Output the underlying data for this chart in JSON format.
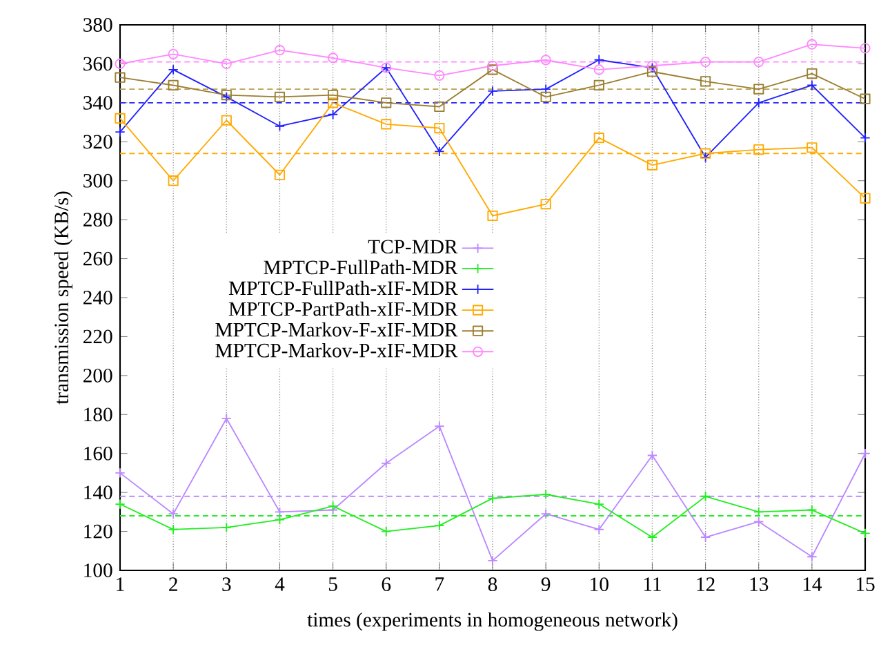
{
  "chart_data": {
    "type": "line",
    "xlabel": "times (experiments in homogeneous network)",
    "ylabel": "transmission speed (KB/s)",
    "x": [
      1,
      2,
      3,
      4,
      5,
      6,
      7,
      8,
      9,
      10,
      11,
      12,
      13,
      14,
      15
    ],
    "xlim": [
      1,
      15
    ],
    "xticks": [
      1,
      2,
      3,
      4,
      5,
      6,
      7,
      8,
      9,
      10,
      11,
      12,
      13,
      14,
      15
    ],
    "ylim": [
      100,
      380
    ],
    "yticks": [
      100,
      120,
      140,
      160,
      180,
      200,
      220,
      240,
      260,
      280,
      300,
      320,
      340,
      360,
      380
    ],
    "grid": "x",
    "legend": "left",
    "line_style": "solid",
    "series": [
      {
        "name": "TCP-MDR",
        "color": "#bb88ff",
        "marker": "cross",
        "values": [
          150,
          129,
          178,
          130,
          131,
          155,
          174,
          105,
          129,
          121,
          159,
          117,
          125,
          107,
          160
        ]
      },
      {
        "name": "MPTCP-FullPath-MDR",
        "color": "#22ee22",
        "marker": "cross",
        "values": [
          134,
          121,
          122,
          126,
          133,
          120,
          123,
          137,
          139,
          134,
          117,
          138,
          130,
          131,
          119
        ]
      },
      {
        "name": "MPTCP-FullPath-xIF-MDR",
        "color": "#2222ff",
        "marker": "cross",
        "values": [
          325,
          357,
          343,
          328,
          334,
          358,
          315,
          346,
          347,
          362,
          358,
          312,
          340,
          349,
          322
        ]
      },
      {
        "name": "MPTCP-PartPath-xIF-MDR",
        "color": "#ffaa00",
        "marker": "square",
        "values": [
          332,
          300,
          331,
          303,
          340,
          329,
          327,
          282,
          288,
          322,
          308,
          314,
          316,
          317,
          291
        ]
      },
      {
        "name": "MPTCP-Markov-F-xIF-MDR",
        "color": "#9b7f30",
        "marker": "square",
        "values": [
          353,
          349,
          344,
          343,
          344,
          340,
          338,
          357,
          343,
          349,
          356,
          351,
          347,
          355,
          342
        ]
      },
      {
        "name": "MPTCP-Markov-P-xIF-MDR",
        "color": "#ff88ff",
        "marker": "circle",
        "values": [
          360,
          365,
          360,
          367,
          363,
          358,
          354,
          359,
          362,
          357,
          359,
          361,
          361,
          370,
          368
        ]
      }
    ],
    "ref_lines": [
      {
        "axis": "y",
        "value": 361,
        "color": "#ff88ff",
        "line_style": "dotted"
      },
      {
        "axis": "y",
        "value": 347,
        "color": "#b8a050",
        "line_style": "dotted"
      },
      {
        "axis": "y",
        "value": 340,
        "color": "#2222ff",
        "line_style": "dotted"
      },
      {
        "axis": "y",
        "value": 314,
        "color": "#ffaa00",
        "line_style": "dotted"
      },
      {
        "axis": "y",
        "value": 138,
        "color": "#bb88ff",
        "line_style": "dotted"
      },
      {
        "axis": "y",
        "value": 128,
        "color": "#22ee22",
        "line_style": "dotted"
      }
    ]
  }
}
